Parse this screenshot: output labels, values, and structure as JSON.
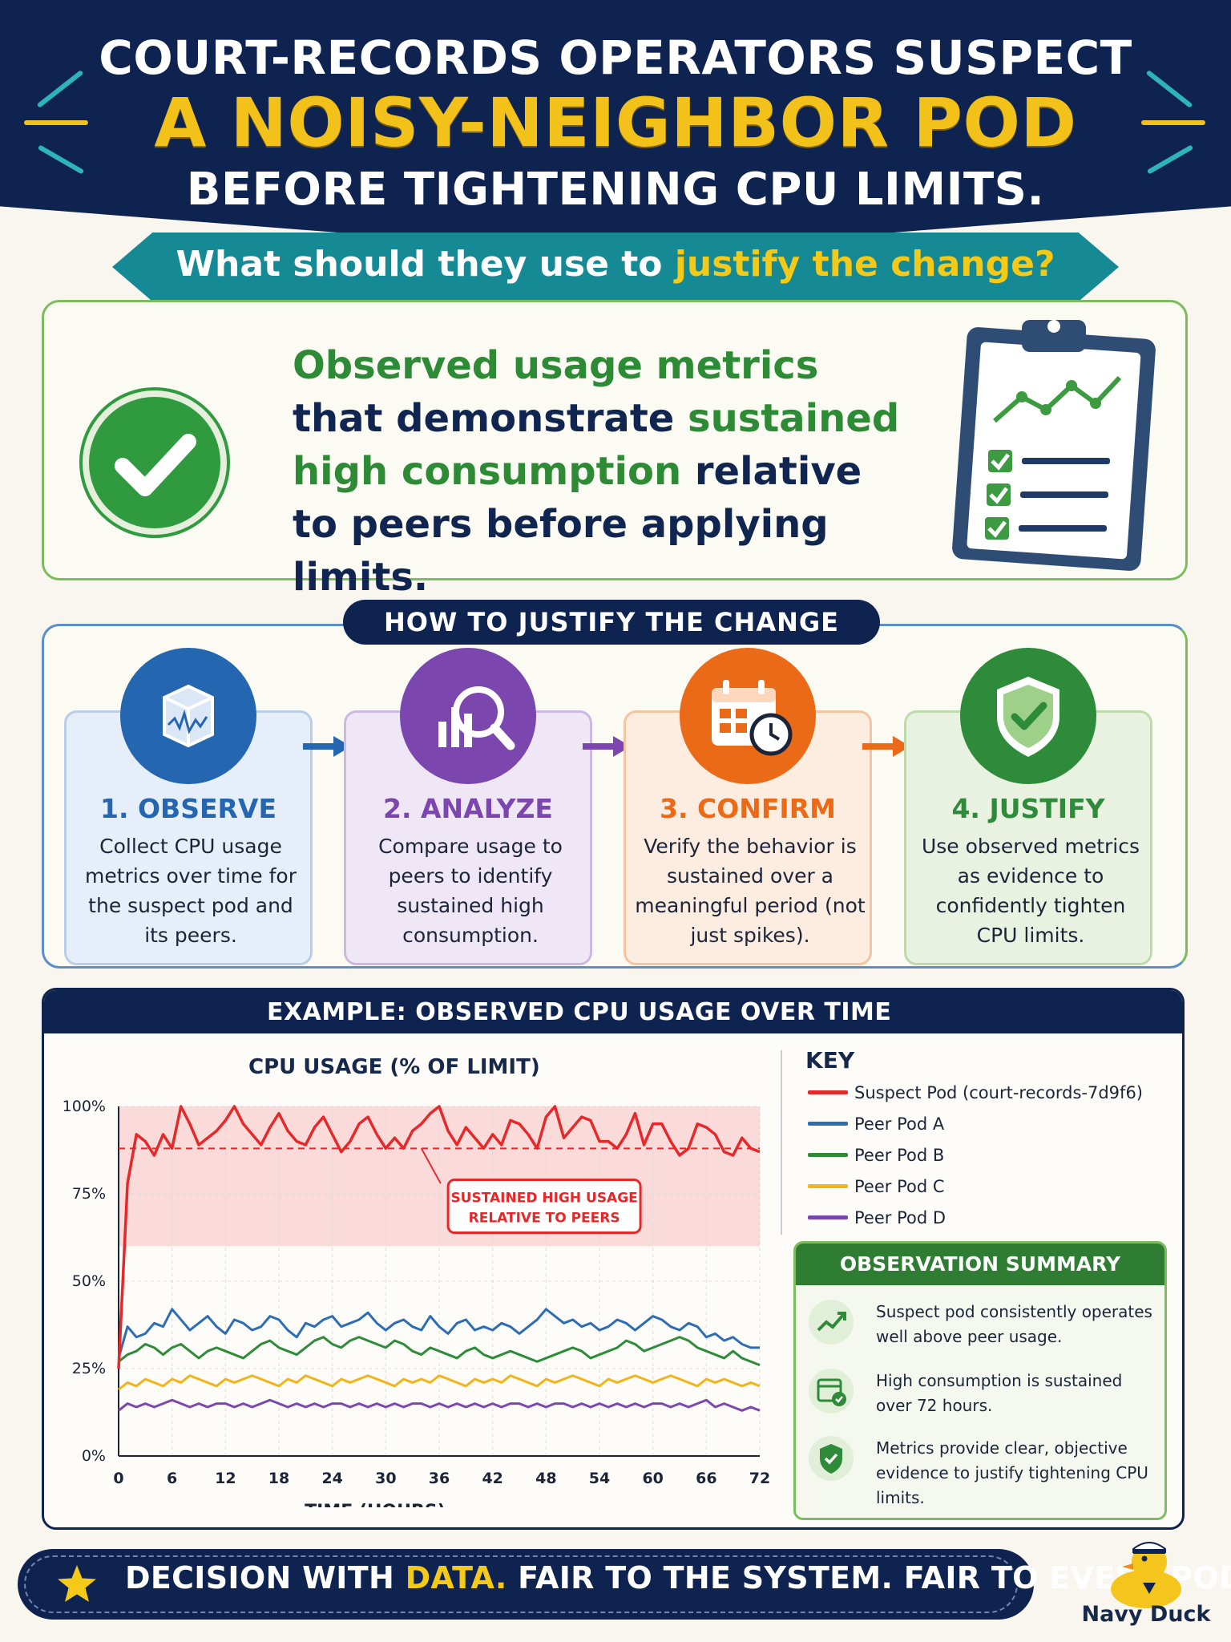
{
  "header": {
    "line1": "COURT-RECORDS OPERATORS SUSPECT",
    "line2": "A NOISY-NEIGHBOR POD",
    "line3": "BEFORE TIGHTENING CPU LIMITS.",
    "question_prefix": "What should they use to ",
    "question_highlight": "justify the change?"
  },
  "answer": {
    "part1": "Observed usage metrics",
    "part2": " that demonstrate ",
    "part3": "sustained high consumption",
    "part4": " relative to peers before applying limits.",
    "icon": "check-icon",
    "illustration": "clipboard-chart-icon"
  },
  "steps_section": {
    "title": "HOW TO JUSTIFY THE CHANGE",
    "steps": [
      {
        "heading": "1. OBSERVE",
        "body": "Collect CPU usage metrics over time for the suspect pod and its peers.",
        "icon": "metrics-cube-icon",
        "color": "#2466b0"
      },
      {
        "heading": "2. ANALYZE",
        "body": "Compare usage to peers to identify sustained high consumption.",
        "icon": "magnifier-chart-icon",
        "color": "#7b46ad"
      },
      {
        "heading": "3. CONFIRM",
        "body": "Verify the behavior is sustained over a meaningful period (not just spikes).",
        "icon": "calendar-clock-icon",
        "color": "#ea6a17"
      },
      {
        "heading": "4. JUSTIFY",
        "body": "Use observed metrics as evidence to confidently tighten CPU limits.",
        "icon": "shield-check-icon",
        "color": "#2e8b3a"
      }
    ]
  },
  "example": {
    "header": "EXAMPLE: OBSERVED CPU USAGE OVER TIME",
    "key_title": "KEY",
    "annotation_line1": "SUSTAINED HIGH USAGE",
    "annotation_line2": "RELATIVE TO PEERS"
  },
  "chart_data": {
    "type": "line",
    "title": "CPU USAGE (% OF LIMIT)",
    "xlabel": "TIME (HOURS)",
    "ylabel": "",
    "xlim": [
      0,
      72
    ],
    "ylim": [
      0,
      100
    ],
    "x_ticks": [
      "0",
      "6",
      "12",
      "18",
      "24",
      "30",
      "36",
      "42",
      "48",
      "54",
      "60",
      "66",
      "72"
    ],
    "y_ticks": [
      "0%",
      "25%",
      "50%",
      "75%",
      "100%"
    ],
    "highlight_band": [
      60,
      100
    ],
    "reference_line": 88,
    "grid": true,
    "legend_position": "right",
    "x": [
      0,
      1,
      2,
      3,
      4,
      5,
      6,
      7,
      8,
      9,
      10,
      11,
      12,
      13,
      14,
      15,
      16,
      17,
      18,
      19,
      20,
      21,
      22,
      23,
      24,
      25,
      26,
      27,
      28,
      29,
      30,
      31,
      32,
      33,
      34,
      35,
      36,
      37,
      38,
      39,
      40,
      41,
      42,
      43,
      44,
      45,
      46,
      47,
      48,
      49,
      50,
      51,
      52,
      53,
      54,
      55,
      56,
      57,
      58,
      59,
      60,
      61,
      62,
      63,
      64,
      65,
      66,
      67,
      68,
      69,
      70,
      71,
      72
    ],
    "series": [
      {
        "name": "Suspect Pod (court-records-7d9f6)",
        "color": "#e5282a",
        "values": [
          25,
          78,
          92,
          90,
          86,
          92,
          88,
          100,
          95,
          89,
          91,
          93,
          96,
          100,
          95,
          92,
          89,
          94,
          98,
          93,
          90,
          89,
          94,
          97,
          92,
          87,
          90,
          95,
          97,
          92,
          88,
          91,
          88,
          93,
          95,
          98,
          100,
          93,
          89,
          94,
          91,
          88,
          92,
          89,
          96,
          95,
          92,
          88,
          97,
          100,
          91,
          94,
          97,
          96,
          90,
          90,
          88,
          92,
          98,
          89,
          95,
          95,
          90,
          86,
          88,
          95,
          94,
          92,
          87,
          86,
          91,
          88,
          87
        ]
      },
      {
        "name": "Peer Pod A",
        "color": "#2d6db4",
        "values": [
          28,
          37,
          34,
          35,
          38,
          37,
          42,
          39,
          36,
          38,
          40,
          37,
          35,
          39,
          38,
          36,
          37,
          40,
          39,
          36,
          34,
          38,
          37,
          39,
          40,
          37,
          38,
          39,
          41,
          38,
          36,
          38,
          39,
          37,
          36,
          40,
          37,
          35,
          38,
          39,
          36,
          37,
          36,
          38,
          37,
          35,
          37,
          39,
          42,
          40,
          38,
          39,
          37,
          38,
          36,
          37,
          39,
          38,
          36,
          38,
          40,
          39,
          37,
          36,
          38,
          37,
          34,
          35,
          33,
          34,
          32,
          31,
          31
        ]
      },
      {
        "name": "Peer Pod B",
        "color": "#2e8b3a",
        "values": [
          27,
          29,
          30,
          32,
          31,
          29,
          31,
          32,
          30,
          28,
          30,
          31,
          30,
          29,
          28,
          30,
          32,
          33,
          31,
          30,
          29,
          31,
          33,
          34,
          32,
          31,
          33,
          34,
          33,
          32,
          31,
          33,
          32,
          30,
          29,
          31,
          30,
          29,
          28,
          30,
          31,
          29,
          28,
          29,
          30,
          29,
          28,
          27,
          28,
          29,
          30,
          31,
          30,
          28,
          29,
          30,
          31,
          33,
          32,
          30,
          31,
          32,
          33,
          34,
          33,
          31,
          30,
          29,
          28,
          30,
          28,
          27,
          26
        ]
      },
      {
        "name": "Peer Pod C",
        "color": "#f1b51c",
        "values": [
          19,
          21,
          20,
          22,
          21,
          20,
          22,
          21,
          23,
          22,
          21,
          20,
          22,
          21,
          22,
          23,
          22,
          21,
          20,
          22,
          21,
          23,
          22,
          21,
          20,
          22,
          21,
          22,
          23,
          22,
          21,
          20,
          22,
          21,
          22,
          21,
          23,
          22,
          21,
          20,
          22,
          21,
          22,
          21,
          23,
          22,
          21,
          20,
          22,
          21,
          22,
          23,
          22,
          21,
          20,
          22,
          21,
          22,
          23,
          22,
          21,
          22,
          23,
          22,
          21,
          20,
          22,
          21,
          22,
          21,
          20,
          21,
          20
        ]
      },
      {
        "name": "Peer Pod D",
        "color": "#7b46ad",
        "values": [
          13,
          15,
          14,
          15,
          14,
          15,
          16,
          15,
          14,
          15,
          14,
          15,
          15,
          14,
          15,
          14,
          15,
          16,
          15,
          14,
          15,
          14,
          15,
          14,
          15,
          15,
          14,
          15,
          14,
          15,
          14,
          15,
          14,
          15,
          15,
          14,
          15,
          14,
          15,
          14,
          15,
          14,
          15,
          14,
          15,
          15,
          14,
          15,
          14,
          15,
          15,
          14,
          15,
          14,
          15,
          14,
          15,
          14,
          15,
          14,
          15,
          15,
          14,
          15,
          14,
          15,
          16,
          14,
          15,
          14,
          13,
          14,
          13
        ]
      }
    ]
  },
  "observation": {
    "title": "OBSERVATION SUMMARY",
    "items": [
      {
        "text": "Suspect pod consistently operates well above peer usage.",
        "icon": "trend-up-icon"
      },
      {
        "text": "High consumption is sustained over 72 hours.",
        "icon": "calendar-check-icon"
      },
      {
        "text": "Metrics provide clear, objective evidence to justify tightening CPU limits.",
        "icon": "shield-check-icon"
      }
    ]
  },
  "footer": {
    "prefix": "DECISION WITH ",
    "highlight": "DATA.",
    "suffix": " FAIR TO THE SYSTEM. FAIR TO EVERY POD.",
    "icon": "star-icon"
  },
  "brand": {
    "name": "Navy Duck",
    "icon": "duck-sailor-icon"
  }
}
